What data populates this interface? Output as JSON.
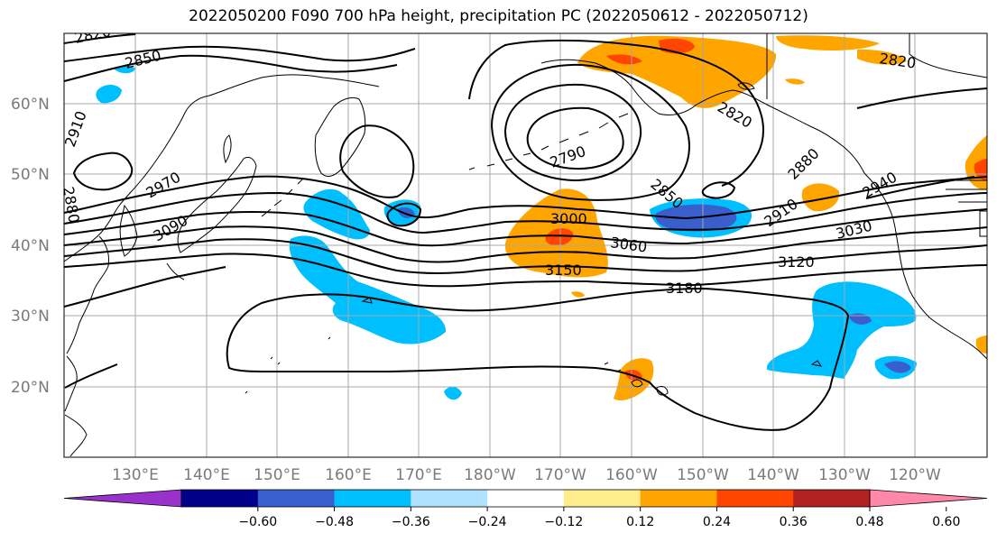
{
  "title": "2022050200 F090 700 hPa height, precipitation PC (2022050612 - 2022050712)",
  "lat_labels": [
    "60°N",
    "50°N",
    "40°N",
    "30°N",
    "20°N"
  ],
  "lon_labels": [
    "130°E",
    "140°E",
    "150°E",
    "160°E",
    "170°E",
    "180°W",
    "170°W",
    "160°W",
    "150°W",
    "140°W",
    "130°W",
    "120°W"
  ],
  "contour_labels": [
    "2820",
    "2850",
    "2910",
    "2880",
    "2970",
    "3090",
    "2790",
    "2850",
    "2820",
    "2880",
    "2910",
    "2940",
    "3000",
    "3060",
    "3150",
    "3120",
    "3030",
    "3180",
    "2820"
  ],
  "colorbar": {
    "ticks": [
      "−0.60",
      "−0.48",
      "−0.36",
      "−0.24",
      "−0.12",
      "0.12",
      "0.24",
      "0.36",
      "0.48",
      "0.60"
    ],
    "colors": [
      "#9932cc",
      "#00008b",
      "#3a5fcd",
      "#00bfff",
      "#b0e2ff",
      "#ffffff",
      "#ffec8b",
      "#ffa500",
      "#ff4500",
      "#b22222",
      "#ff88aa"
    ]
  },
  "map_colors": {
    "neg_light": "#00bfff",
    "neg_mid": "#3a5fcd",
    "pos_light": "#ffec8b",
    "pos_mid": "#ffa500",
    "pos_strong": "#ff4500"
  }
}
